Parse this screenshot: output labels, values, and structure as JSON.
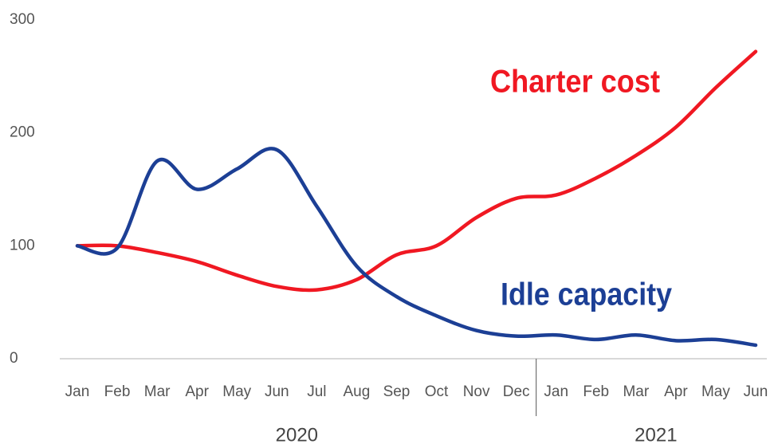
{
  "chart_data": {
    "type": "line",
    "categories": [
      "Jan",
      "Feb",
      "Mar",
      "Apr",
      "May",
      "Jun",
      "Jul",
      "Aug",
      "Sep",
      "Oct",
      "Nov",
      "Dec",
      "Jan",
      "Feb",
      "Mar",
      "Apr",
      "May",
      "Jun"
    ],
    "groups": [
      {
        "label": "2020",
        "count": 12
      },
      {
        "label": "2021",
        "count": 6
      }
    ],
    "series": [
      {
        "name": "Charter cost",
        "color": "#f01822",
        "values": [
          100,
          100,
          94,
          86,
          74,
          64,
          61,
          70,
          92,
          100,
          125,
          142,
          145,
          160,
          180,
          205,
          240,
          272
        ]
      },
      {
        "name": "Idle capacity",
        "color": "#1c3f95",
        "values": [
          100,
          98,
          175,
          150,
          168,
          185,
          135,
          82,
          55,
          38,
          25,
          20,
          21,
          17,
          21,
          16,
          17,
          12
        ]
      }
    ],
    "ylim": [
      0,
      300
    ],
    "yticks": [
      0,
      100,
      200,
      300
    ]
  }
}
